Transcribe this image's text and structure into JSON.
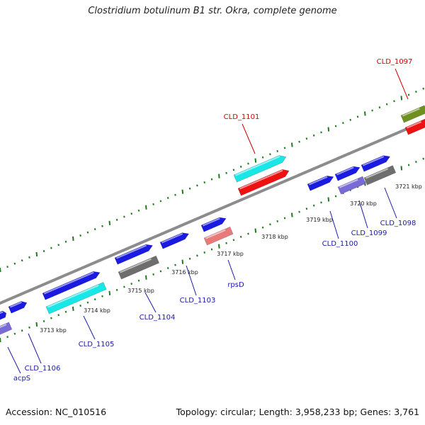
{
  "title": "Clostridium botulinum B1 str. Okra, complete genome",
  "footer": {
    "accession": "Accession: NC_010516",
    "summary": "Topology: circular; Length: 3,958,233 bp; Genes: 3,761"
  },
  "colors": {
    "backbone": "#8c8c8c",
    "tick_green": "#1f7a1f",
    "label_red": "#d40000",
    "label_blue": "#1a1aa6",
    "cds_blue": "#1a1ae0",
    "cyan": "#19e6e6",
    "red": "#ee1111",
    "gray": "#6e6e6e",
    "olive": "#6f8f1f",
    "lavender": "#7a6ad6",
    "pink": "#e87a7a"
  },
  "kbp_labels": [
    {
      "text": "3713 kbp"
    },
    {
      "text": "3714 kbp"
    },
    {
      "text": "3715 kbp"
    },
    {
      "text": "3716 kbp"
    },
    {
      "text": "3717 kbp"
    },
    {
      "text": "3718 kbp"
    },
    {
      "text": "3719 kbp"
    },
    {
      "text": "3720 kbp"
    },
    {
      "text": "3721 kbp"
    }
  ],
  "gene_labels": [
    {
      "text": "CLD_1097",
      "color": "red"
    },
    {
      "text": "CLD_1101",
      "color": "red"
    },
    {
      "text": "CLD_1098",
      "color": "blue"
    },
    {
      "text": "CLD_1099",
      "color": "blue"
    },
    {
      "text": "CLD_1100",
      "color": "blue"
    },
    {
      "text": "rpsD",
      "color": "blue"
    },
    {
      "text": "CLD_1103",
      "color": "blue"
    },
    {
      "text": "CLD_1104",
      "color": "blue"
    },
    {
      "text": "CLD_1105",
      "color": "blue"
    },
    {
      "text": "CLD_1106",
      "color": "blue"
    },
    {
      "text": "acpS",
      "color": "blue"
    }
  ]
}
